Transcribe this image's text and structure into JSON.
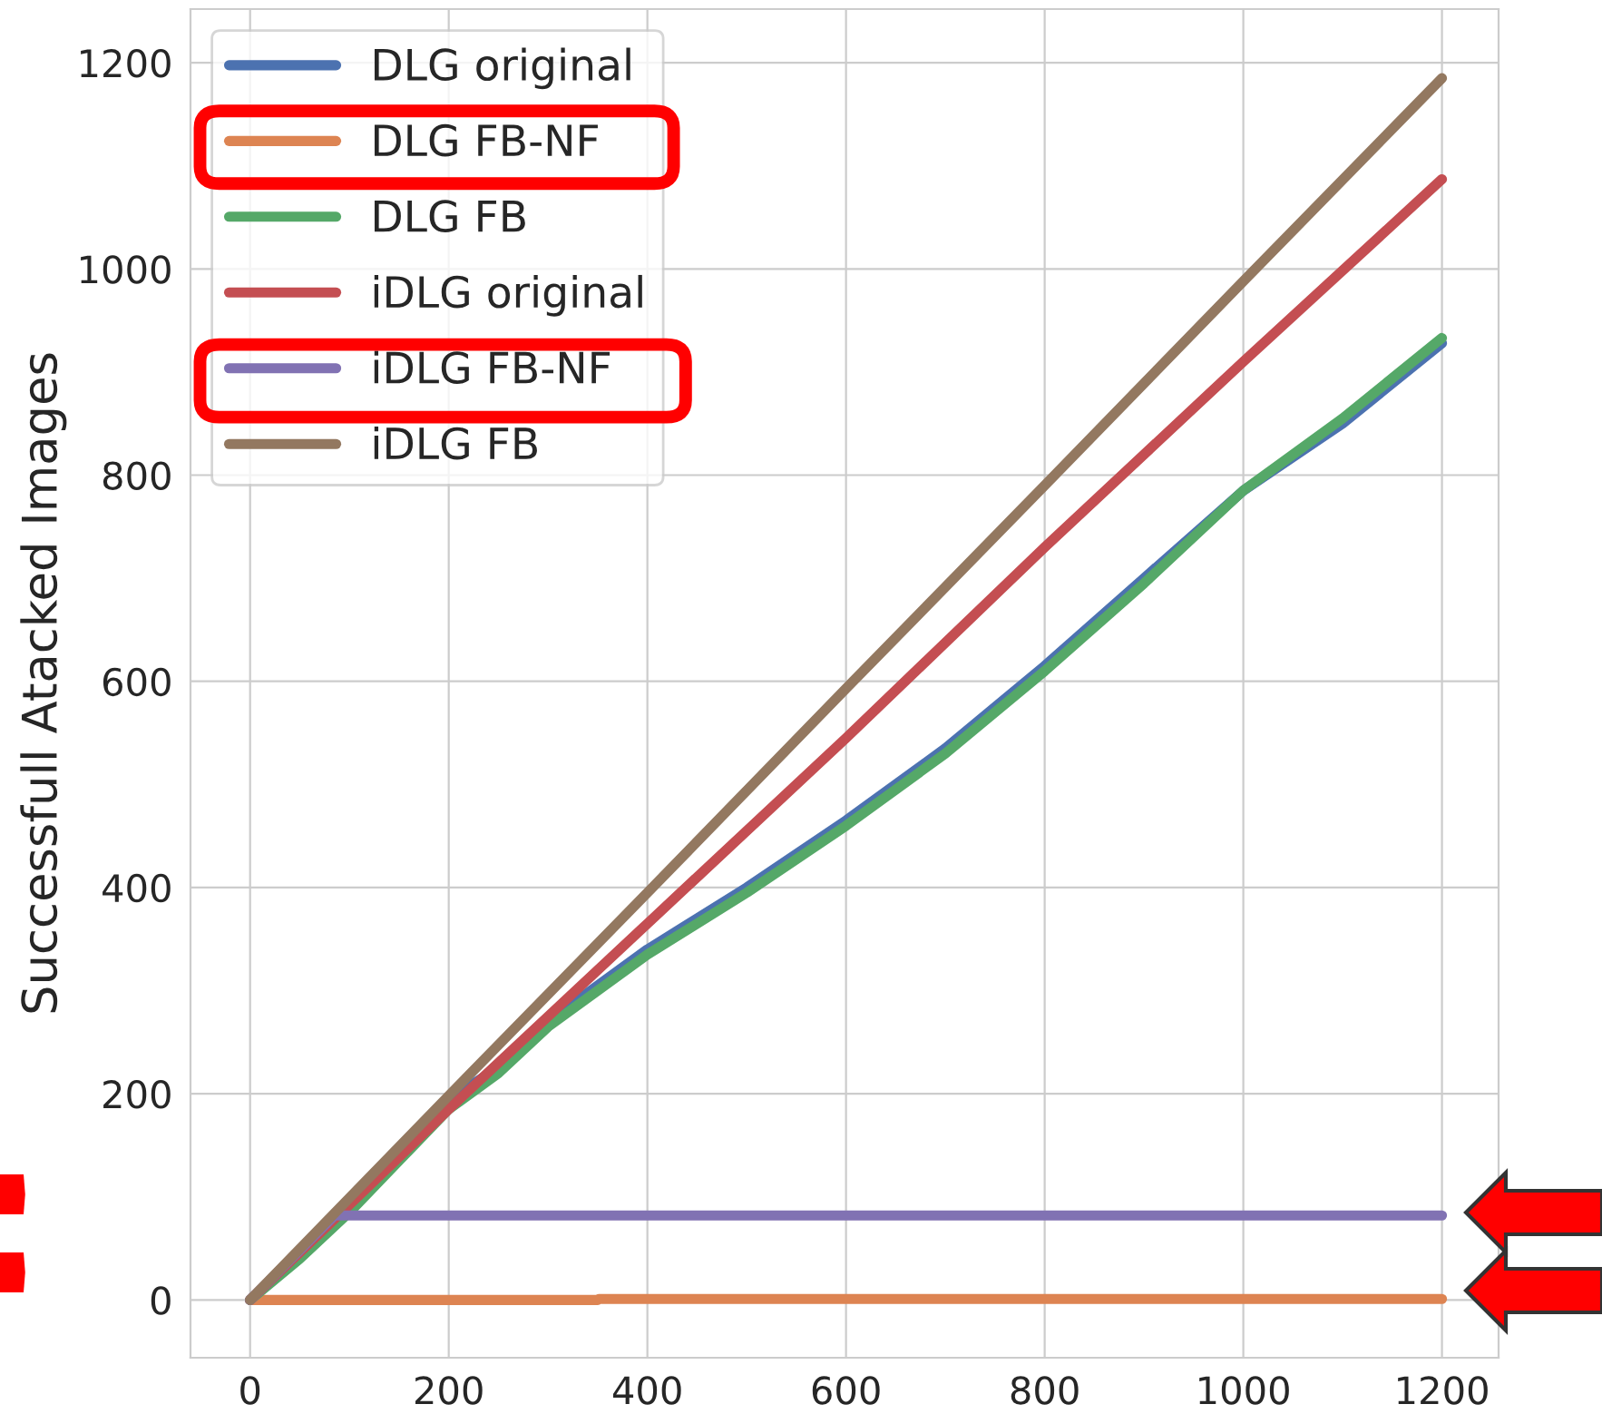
{
  "chart_data": {
    "type": "line",
    "ylabel": "Successfull Atacked Images",
    "xlim": [
      -60,
      1257
    ],
    "ylim": [
      -56,
      1252
    ],
    "xticks": [
      0,
      200,
      400,
      600,
      800,
      1000,
      1200
    ],
    "yticks": [
      0,
      200,
      400,
      600,
      800,
      1000,
      1200
    ],
    "grid": true,
    "legend": "top left",
    "marker": "none",
    "line_style": "solid",
    "series": [
      {
        "name": "DLG original",
        "color": "#4c72b0",
        "x": [
          0,
          50,
          100,
          150,
          200,
          250,
          300,
          400,
          500,
          600,
          700,
          800,
          900,
          1000,
          1100,
          1200
        ],
        "values": [
          0,
          45,
          90,
          140,
          195,
          225,
          270,
          340,
          400,
          465,
          535,
          615,
          700,
          785,
          850,
          928
        ]
      },
      {
        "name": "DLG FB-NF",
        "color": "#dd8452",
        "x": [
          0,
          350,
          351,
          1200
        ],
        "values": [
          0,
          0,
          1,
          1
        ]
      },
      {
        "name": "DLG FB",
        "color": "#55a868",
        "x": [
          0,
          50,
          100,
          150,
          200,
          250,
          300,
          400,
          500,
          600,
          700,
          800,
          900,
          1000,
          1100,
          1200
        ],
        "values": [
          0,
          40,
          85,
          135,
          185,
          220,
          265,
          335,
          395,
          460,
          530,
          610,
          695,
          785,
          855,
          933
        ]
      },
      {
        "name": "iDLG original",
        "color": "#c44e52",
        "x": [
          0,
          200,
          400,
          600,
          800,
          1000,
          1200
        ],
        "values": [
          0,
          185,
          365,
          545,
          730,
          910,
          1087
        ]
      },
      {
        "name": "iDLG FB-NF",
        "color": "#8172b3",
        "x": [
          0,
          85,
          1200
        ],
        "values": [
          0,
          82,
          82
        ]
      },
      {
        "name": "iDLG FB",
        "color": "#937860",
        "x": [
          0,
          200,
          400,
          600,
          800,
          1000,
          1200
        ],
        "values": [
          0,
          198,
          395,
          593,
          790,
          988,
          1185
        ]
      }
    ]
  }
}
